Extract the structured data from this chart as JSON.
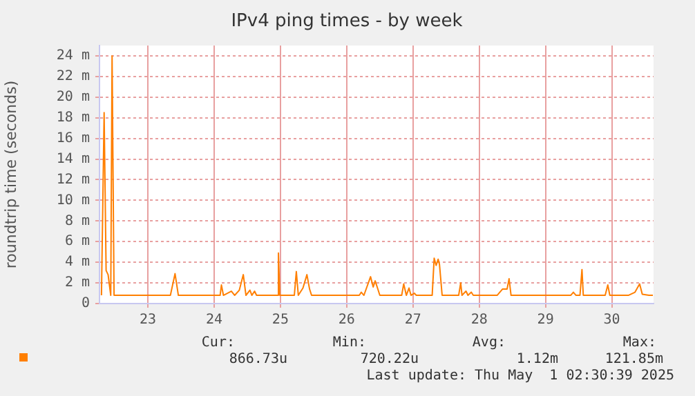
{
  "chart_data": {
    "type": "line",
    "title": "IPv4 ping times - by week",
    "ylabel": "roundtrip time (seconds)",
    "xlim": [
      22.27,
      30.63
    ],
    "xticks": [
      23,
      24,
      25,
      26,
      27,
      28,
      29,
      30
    ],
    "ylim": [
      0,
      25
    ],
    "yticks": [
      0,
      {
        "value": 2,
        "label": "2 m"
      },
      {
        "value": 4,
        "label": "4 m"
      },
      {
        "value": 6,
        "label": "6 m"
      },
      {
        "value": 8,
        "label": "8 m"
      },
      {
        "value": 10,
        "label": "10 m"
      },
      {
        "value": 12,
        "label": "12 m"
      },
      {
        "value": 14,
        "label": "14 m"
      },
      {
        "value": 16,
        "label": "16 m"
      },
      {
        "value": 18,
        "label": "18 m"
      },
      {
        "value": 20,
        "label": "20 m"
      },
      {
        "value": 22,
        "label": "22 m"
      },
      {
        "value": 24,
        "label": "24 m"
      }
    ],
    "grid": true,
    "legend": false,
    "marker": "none",
    "line_style": "solid",
    "annotations": [
      "Cur:",
      "866.73u",
      "Min:",
      "720.22u",
      "Avg:",
      "1.12m",
      "Max:",
      "121.85m",
      "Last update: Thu May  1 02:30:39 2025"
    ],
    "series": [
      {
        "color": "#ff7f00",
        "x": [
          22.3,
          22.34,
          22.37,
          22.4,
          22.44,
          22.46,
          22.49,
          23.34,
          23.41,
          23.46,
          24.09,
          24.11,
          24.14,
          24.26,
          24.31,
          24.38,
          24.44,
          24.48,
          24.54,
          24.57,
          24.61,
          24.64,
          24.96,
          24.97,
          24.99,
          25.21,
          25.24,
          25.27,
          25.34,
          25.4,
          25.44,
          25.47,
          26.19,
          26.22,
          26.26,
          26.36,
          26.4,
          26.43,
          26.47,
          26.5,
          26.83,
          26.86,
          26.9,
          26.94,
          26.97,
          27.02,
          27.05,
          27.29,
          27.32,
          27.35,
          27.38,
          27.4,
          27.44,
          27.69,
          27.72,
          27.74,
          27.8,
          27.83,
          27.88,
          27.91,
          28.27,
          28.35,
          28.42,
          28.45,
          28.48,
          29.38,
          29.42,
          29.46,
          29.52,
          29.55,
          29.57,
          29.9,
          29.94,
          29.97,
          30.25,
          30.35,
          30.42,
          30.46,
          30.56,
          30.62
        ],
        "values": [
          0.8,
          18.5,
          3.2,
          2.8,
          0.8,
          24.0,
          0.8,
          0.8,
          2.9,
          0.8,
          0.8,
          1.8,
          0.8,
          1.2,
          0.8,
          1.3,
          2.8,
          0.8,
          1.3,
          0.8,
          1.2,
          0.8,
          0.8,
          4.9,
          0.8,
          0.8,
          3.1,
          0.8,
          1.5,
          2.8,
          1.4,
          0.8,
          0.8,
          1.1,
          0.8,
          2.6,
          1.6,
          2.2,
          1.4,
          0.8,
          0.8,
          1.9,
          0.8,
          1.5,
          0.8,
          1.0,
          0.8,
          0.8,
          4.4,
          3.7,
          4.3,
          3.8,
          0.8,
          0.8,
          2.0,
          0.8,
          1.2,
          0.8,
          1.1,
          0.8,
          0.8,
          1.4,
          1.4,
          2.4,
          0.8,
          0.8,
          1.1,
          0.8,
          0.8,
          3.3,
          0.8,
          0.8,
          1.8,
          0.8,
          0.8,
          1.1,
          1.9,
          0.9,
          0.8,
          0.8
        ]
      }
    ]
  }
}
